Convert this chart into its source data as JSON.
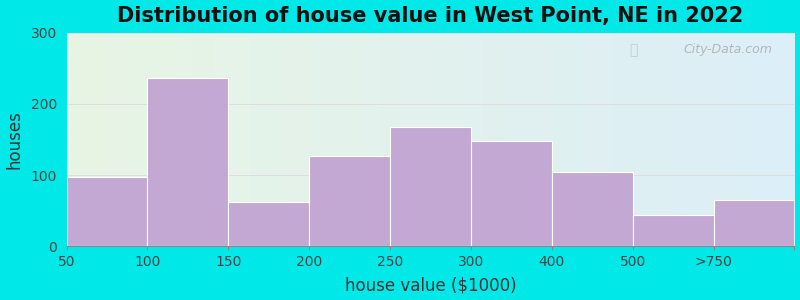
{
  "title": "Distribution of house value in West Point, NE in 2022",
  "xlabel": "house value ($1000)",
  "ylabel": "houses",
  "tick_labels": [
    "50",
    "100",
    "150",
    "200",
    "250",
    "300",
    "400",
    "500",
    ">750"
  ],
  "values": [
    97,
    237,
    62,
    127,
    168,
    148,
    105,
    44,
    65
  ],
  "bar_color": "#c4a8d4",
  "bar_edgecolor": "#ffffff",
  "background_outer": "#00e8e8",
  "ylim": [
    0,
    300
  ],
  "yticks": [
    0,
    100,
    200,
    300
  ],
  "title_fontsize": 15,
  "axis_label_fontsize": 12,
  "tick_fontsize": 10,
  "watermark_text": "City-Data.com",
  "grid_color": "#dddddd",
  "bg_left_color": "#e8f5e4",
  "bg_right_color": "#ddeef8"
}
